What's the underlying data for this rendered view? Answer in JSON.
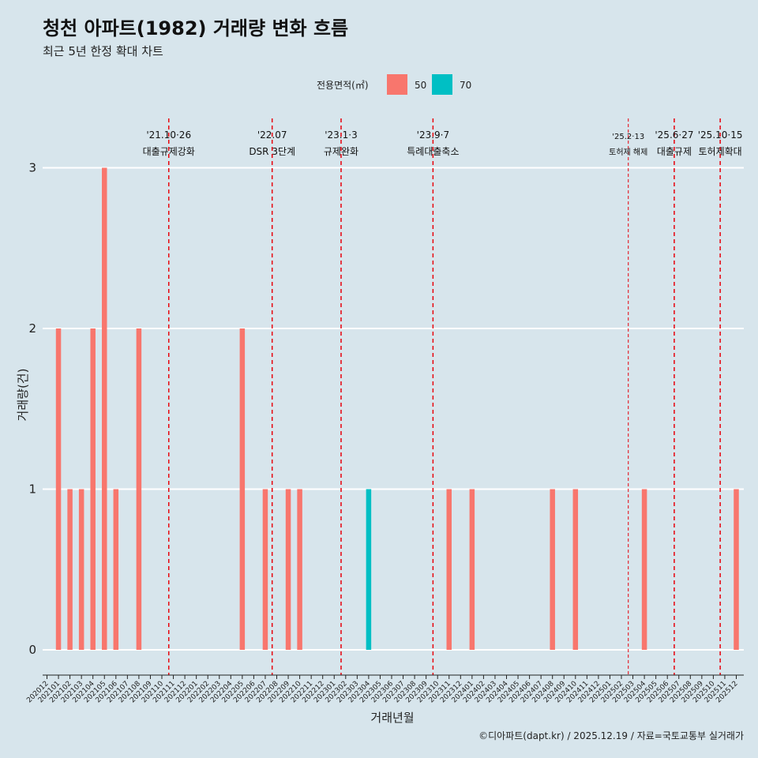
{
  "title": "청천 아파트(1982) 거래량 변화 흐름",
  "subtitle": "최근 5년 한정 확대 차트",
  "caption": "©디아파트(dapt.kr) / 2025.12.19 / 자료=국토교통부 실거래가",
  "colors": {
    "background": "#d7e5ec",
    "series_50": "#f8766d",
    "series_70": "#00bfc4",
    "event_line": "#e8000b",
    "grid": "#ffffff"
  },
  "chart_data": {
    "type": "bar",
    "xlabel": "거래년월",
    "ylabel": "거래량(건)",
    "ylim": [
      0,
      3
    ],
    "yticks": [
      0,
      1,
      2,
      3
    ],
    "legend": {
      "title": "전용면적(㎡)",
      "position": "top",
      "entries": [
        "50",
        "70"
      ]
    },
    "categories": [
      "202012",
      "202101",
      "202102",
      "202103",
      "202104",
      "202105",
      "202106",
      "202107",
      "202108",
      "202109",
      "202110",
      "202111",
      "202112",
      "202201",
      "202202",
      "202203",
      "202204",
      "202205",
      "202206",
      "202207",
      "202208",
      "202209",
      "202210",
      "202211",
      "202212",
      "202301",
      "202302",
      "202303",
      "202304",
      "202305",
      "202306",
      "202307",
      "202308",
      "202309",
      "202310",
      "202311",
      "202312",
      "202401",
      "202402",
      "202403",
      "202404",
      "202405",
      "202406",
      "202407",
      "202408",
      "202409",
      "202410",
      "202411",
      "202412",
      "202501",
      "202502",
      "202503",
      "202504",
      "202505",
      "202506",
      "202507",
      "202508",
      "202509",
      "202510",
      "202511",
      "202512"
    ],
    "series": [
      {
        "name": "50",
        "points": [
          {
            "x": "202101",
            "y": 2
          },
          {
            "x": "202102",
            "y": 1
          },
          {
            "x": "202103",
            "y": 1
          },
          {
            "x": "202104",
            "y": 2
          },
          {
            "x": "202105",
            "y": 3
          },
          {
            "x": "202106",
            "y": 1
          },
          {
            "x": "202108",
            "y": 2
          },
          {
            "x": "202205",
            "y": 2
          },
          {
            "x": "202207",
            "y": 1
          },
          {
            "x": "202209",
            "y": 1
          },
          {
            "x": "202210",
            "y": 1
          },
          {
            "x": "202311",
            "y": 1
          },
          {
            "x": "202401",
            "y": 1
          },
          {
            "x": "202408",
            "y": 1
          },
          {
            "x": "202410",
            "y": 1
          },
          {
            "x": "202504",
            "y": 1
          },
          {
            "x": "202512",
            "y": 1
          }
        ]
      },
      {
        "name": "70",
        "points": [
          {
            "x": "202304",
            "y": 1
          }
        ]
      }
    ],
    "events": [
      {
        "x": 10.6,
        "line1": "'21.10·26",
        "line2": "대출규제강화",
        "small": false
      },
      {
        "x": 19.6,
        "line1": "'22.07",
        "line2": "DSR 3단계",
        "small": false
      },
      {
        "x": 25.6,
        "line1": "'23.1·3",
        "line2": "규제완화",
        "small": false
      },
      {
        "x": 33.6,
        "line1": "'23.9·7",
        "line2": "특례대출축소",
        "small": false
      },
      {
        "x": 50.6,
        "line1": "'25.2·13",
        "line2": "토허제 해제",
        "small": true
      },
      {
        "x": 54.6,
        "line1": "'25.6·27",
        "line2": "대출규제",
        "small": false
      },
      {
        "x": 58.6,
        "line1": "'25.10·15",
        "line2": "토허제확대",
        "small": false
      }
    ]
  }
}
